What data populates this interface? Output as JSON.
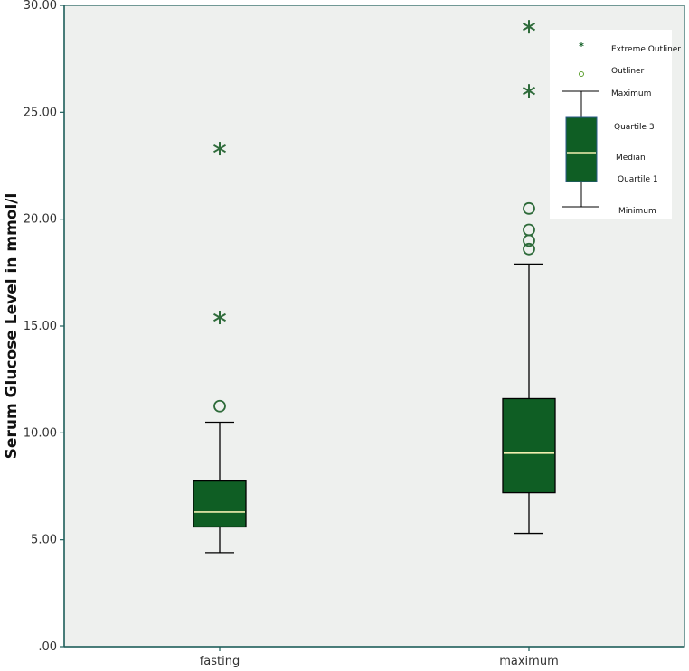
{
  "chart_data": {
    "type": "boxplot",
    "title": "",
    "xlabel": "",
    "ylabel": "Serum Glucose Level in mmol/l",
    "ylim": [
      0,
      30
    ],
    "yticks": [
      0,
      5,
      10,
      15,
      20,
      25,
      30
    ],
    "ytick_labels": [
      ".00",
      "5.00",
      "10.00",
      "15.00",
      "20.00",
      "25.00",
      "30.00"
    ],
    "grid": false,
    "categories": [
      "fasting",
      "maximum"
    ],
    "series": [
      {
        "name": "fasting",
        "min": 4.4,
        "q1": 5.6,
        "median": 6.3,
        "q3": 7.75,
        "max": 10.5,
        "outliers": [
          11.25
        ],
        "extreme_outliers": [
          15.4,
          23.3
        ]
      },
      {
        "name": "maximum",
        "min": 5.3,
        "q1": 7.2,
        "median": 9.05,
        "q3": 11.6,
        "max": 17.9,
        "outliers": [
          18.6,
          19.0,
          19.5,
          20.5
        ],
        "extreme_outliers": [
          26.0,
          29.0
        ]
      }
    ],
    "legend": {
      "position": "top-right",
      "items": {
        "extreme": "Extreme Outliner",
        "outlier": "Outliner",
        "maximum": "Maximum",
        "q3": "Quartile 3",
        "median": "Median",
        "q1": "Quartile 1",
        "minimum": "Minimum"
      }
    },
    "colors": {
      "box_fill": "#0f5e24",
      "median_line": "#f2efb0",
      "outlier_stroke": "#2e6b3a",
      "plot_background": "#eef0ee",
      "axis": "#1e5e5a",
      "whisker": "#000000"
    }
  }
}
